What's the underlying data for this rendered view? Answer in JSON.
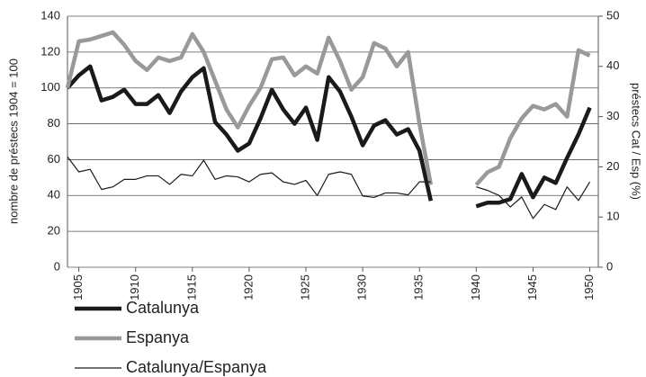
{
  "chart_data": {
    "type": "line",
    "ylabel": "nombre de préstecs  1904 = 100",
    "y2label": "préstecs  Cat / Esp (%)",
    "x": [
      1904,
      1905,
      1906,
      1907,
      1908,
      1909,
      1910,
      1911,
      1912,
      1913,
      1914,
      1915,
      1916,
      1917,
      1918,
      1919,
      1920,
      1921,
      1922,
      1923,
      1924,
      1925,
      1926,
      1927,
      1928,
      1929,
      1930,
      1931,
      1932,
      1933,
      1934,
      1935,
      1936,
      1937,
      1938,
      1939,
      1940,
      1941,
      1942,
      1943,
      1944,
      1945,
      1946,
      1947,
      1948,
      1949,
      1950
    ],
    "series": [
      {
        "name": "Catalunya",
        "color": "#1a1a1a",
        "width": 4.5,
        "values": [
          100,
          107,
          112,
          93,
          95,
          99,
          91,
          91,
          96,
          86,
          98,
          106,
          111,
          81,
          74,
          65,
          69,
          83,
          99,
          88,
          80,
          89,
          71,
          106,
          98,
          84,
          68,
          79,
          82,
          74,
          77,
          65,
          37,
          null,
          null,
          null,
          34,
          36,
          36,
          38,
          52,
          39,
          50,
          47,
          61,
          74,
          89
        ]
      },
      {
        "name": "Espanya",
        "color": "#999999",
        "width": 4.5,
        "values": [
          100,
          126,
          127,
          129,
          131,
          124,
          115,
          110,
          117,
          115,
          117,
          130,
          120,
          104,
          88,
          78,
          90,
          100,
          116,
          117,
          107,
          112,
          108,
          128,
          115,
          99,
          106,
          125,
          122,
          112,
          120,
          80,
          46,
          null,
          null,
          null,
          46,
          53,
          56,
          72,
          83,
          90,
          88,
          91,
          84,
          121,
          118
        ]
      },
      {
        "name": "Catalunya/Espanya",
        "color": "#1a1a1a",
        "width": 1.2,
        "axis": "y2",
        "values": [
          22,
          19,
          19.5,
          15.5,
          16,
          17.5,
          17.5,
          18.2,
          18.2,
          16.5,
          18.5,
          18.2,
          21.3,
          17.5,
          18.2,
          18,
          17,
          18.5,
          18.8,
          17,
          16.5,
          17.3,
          14.3,
          18.5,
          19,
          18.5,
          14.2,
          13.9,
          14.8,
          14.8,
          14.4,
          17,
          17,
          null,
          null,
          null,
          16,
          15.3,
          14.3,
          12,
          14,
          9.7,
          12.5,
          11.5,
          16,
          13.3,
          17
        ]
      }
    ],
    "xlim": [
      1904,
      1950.75
    ],
    "xticks": [
      1905,
      1910,
      1915,
      1920,
      1925,
      1930,
      1935,
      1940,
      1945,
      1950
    ],
    "ylim": [
      0,
      140
    ],
    "yticks": [
      0,
      20,
      40,
      60,
      80,
      100,
      120,
      140
    ],
    "y2lim": [
      0,
      50
    ],
    "y2ticks": [
      0,
      10,
      20,
      30,
      40,
      50
    ],
    "grid": true
  }
}
